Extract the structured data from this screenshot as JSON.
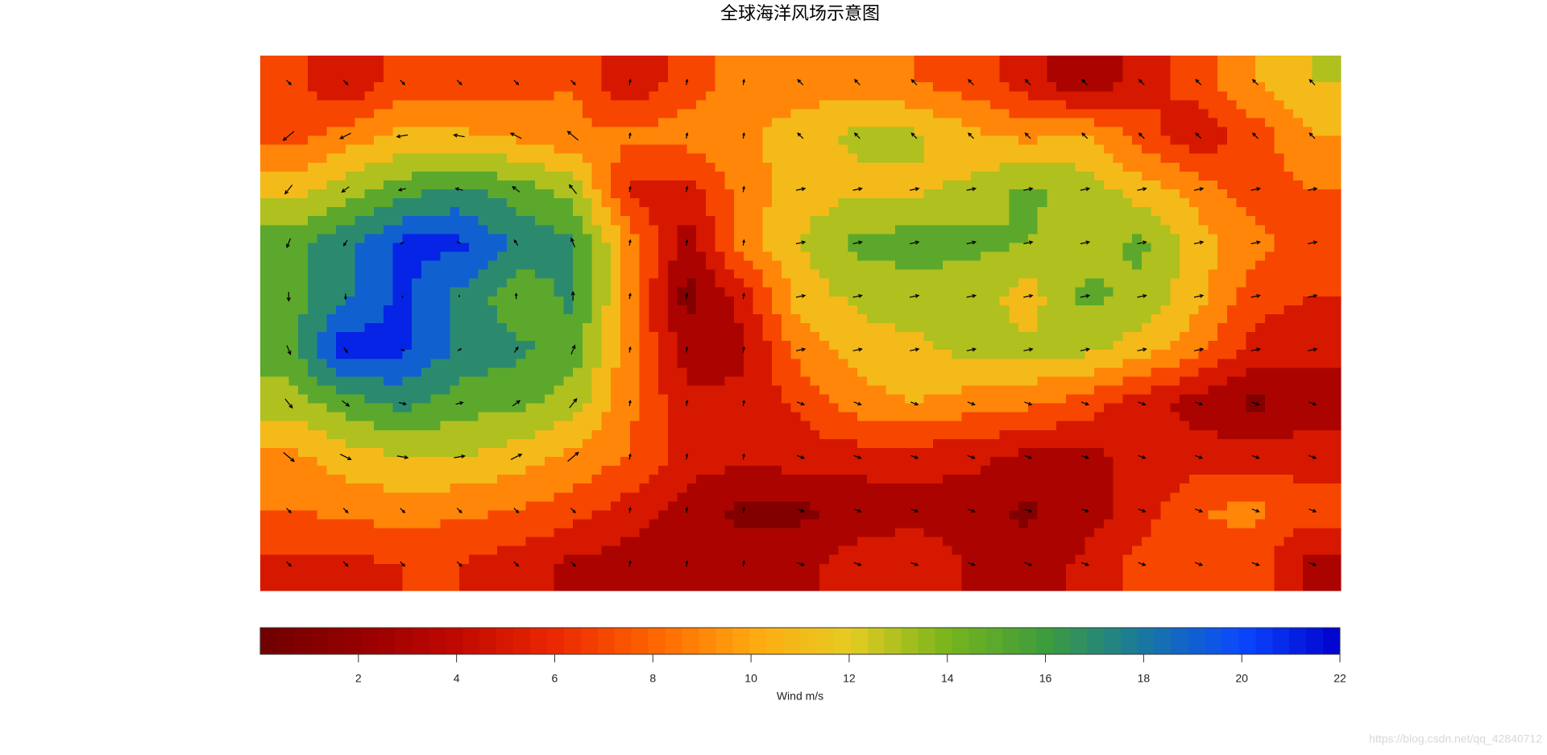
{
  "chart_data": {
    "type": "contour",
    "title": "全球海洋风场示意图",
    "colorbar_label": "Wind m/s",
    "clim": [
      0,
      22
    ],
    "cticks": [
      2,
      4,
      6,
      8,
      10,
      12,
      14,
      16,
      18,
      20,
      22
    ],
    "levels": [
      0,
      2,
      4,
      6,
      8,
      10,
      12,
      14,
      16,
      18,
      20,
      22
    ],
    "colormap": [
      "#700000",
      "#950000",
      "#c00800",
      "#ec2800",
      "#ff6400",
      "#ffa810",
      "#e6cc22",
      "#78b41c",
      "#3d9c3c",
      "#1878a0",
      "#0a48ff",
      "#0000cc"
    ],
    "speed": [
      [
        7,
        4,
        7,
        7,
        7,
        8,
        4,
        7,
        9,
        9,
        9,
        8,
        7,
        5,
        2,
        5,
        7,
        10,
        12
      ],
      [
        7,
        9,
        10.5,
        10.5,
        9.5,
        8.5,
        8.5,
        9,
        9.5,
        11,
        12.5,
        12.5,
        10.5,
        9.5,
        10.5,
        7,
        4.5,
        7,
        10
      ],
      [
        11,
        13,
        15,
        16.5,
        15,
        13,
        5.5,
        5,
        9,
        11,
        11.5,
        11.5,
        12.5,
        14.5,
        13,
        11,
        9,
        7,
        8
      ],
      [
        15,
        17.5,
        20.5,
        20.5,
        17.5,
        16.5,
        9,
        3,
        9,
        12,
        14.5,
        15,
        14.5,
        14,
        13,
        14.5,
        11,
        8.5,
        7
      ],
      [
        15,
        17.5,
        20.5,
        17.5,
        14.5,
        16.5,
        9,
        1,
        5,
        11,
        12.5,
        13,
        13,
        11,
        14.5,
        13.5,
        10.5,
        7,
        6
      ],
      [
        15,
        21.5,
        20.5,
        17.5,
        16.5,
        15,
        8.5,
        3,
        3.5,
        9,
        11,
        11.5,
        12.5,
        12.5,
        12.5,
        11,
        8.5,
        5,
        4.5
      ],
      [
        13,
        15,
        16.5,
        15,
        14.5,
        13,
        8.5,
        4.5,
        4.5,
        6.5,
        9,
        10,
        9,
        8.5,
        7,
        5,
        3,
        1.5,
        3
      ],
      [
        9.5,
        11,
        12,
        12,
        11,
        9.5,
        8,
        5,
        4.5,
        5,
        5,
        5,
        4.5,
        3.5,
        3.5,
        4.5,
        5,
        5,
        5
      ],
      [
        8,
        8.5,
        9,
        8.5,
        8,
        7,
        5,
        3,
        1.5,
        1.5,
        2.5,
        3,
        3,
        1.5,
        3,
        5,
        8,
        8.5,
        7
      ],
      [
        5.5,
        5.5,
        6,
        6,
        5,
        3.5,
        3,
        3,
        3,
        3.5,
        5,
        6,
        3.5,
        3,
        4.5,
        7,
        7.5,
        7,
        3
      ]
    ],
    "u": [
      [
        0.5,
        0.5,
        0.5,
        0.5,
        0.5,
        0.5,
        0.1,
        0.1,
        0.1,
        -0.6,
        -0.6,
        -0.6,
        -0.6,
        -0.6,
        -0.6,
        -0.6,
        -0.6,
        -0.6,
        -0.6
      ],
      [
        -1.2,
        -1.2,
        -1.2,
        -1.2,
        -1.2,
        -1.2,
        0.1,
        0.1,
        0.1,
        -0.6,
        -0.6,
        -0.6,
        -0.6,
        -0.6,
        -0.6,
        -0.6,
        -0.6,
        -0.6,
        -0.6
      ],
      [
        -0.8,
        -0.8,
        -0.8,
        -0.8,
        -0.8,
        -0.8,
        0.1,
        0.1,
        0.1,
        1,
        1,
        1,
        1,
        1,
        1,
        1,
        1,
        1,
        1
      ],
      [
        -0.4,
        -0.4,
        -0.4,
        -0.4,
        -0.4,
        -0.4,
        0.1,
        0.1,
        0.1,
        1,
        1,
        1,
        1,
        1,
        1,
        1,
        1,
        1,
        1
      ],
      [
        0,
        0,
        0,
        0,
        0,
        0,
        0.1,
        0.1,
        0.1,
        1,
        1,
        1,
        1,
        1,
        1,
        1,
        1,
        1,
        1
      ],
      [
        0.4,
        0.4,
        0.4,
        0.4,
        0.4,
        0.4,
        0.1,
        0.1,
        0.1,
        1,
        1,
        1,
        1,
        1,
        1,
        1,
        1,
        1,
        1
      ],
      [
        0.8,
        0.8,
        0.8,
        0.8,
        0.8,
        0.8,
        0.1,
        0.1,
        0.1,
        0.8,
        0.8,
        0.8,
        0.8,
        0.8,
        0.8,
        0.8,
        0.8,
        0.8,
        0.8
      ],
      [
        1.2,
        1.2,
        1.2,
        1.2,
        1.2,
        1.2,
        0.1,
        0.1,
        0.1,
        0.8,
        0.8,
        0.8,
        0.8,
        0.8,
        0.8,
        0.8,
        0.8,
        0.8,
        0.8
      ],
      [
        0.5,
        0.5,
        0.5,
        0.5,
        0.5,
        0.5,
        0.1,
        0.1,
        0.1,
        0.8,
        0.8,
        0.8,
        0.8,
        0.8,
        0.8,
        0.8,
        0.8,
        0.8,
        0.8
      ],
      [
        0.5,
        0.5,
        0.5,
        0.5,
        0.5,
        0.5,
        0.1,
        0.1,
        0.1,
        0.8,
        0.8,
        0.8,
        0.8,
        0.8,
        0.8,
        0.8,
        0.8,
        0.8,
        0.8
      ]
    ],
    "v": [
      [
        -0.5,
        -0.5,
        -0.5,
        -0.5,
        -0.5,
        -0.5,
        0.6,
        0.6,
        0.6,
        0.6,
        0.6,
        0.6,
        0.6,
        0.6,
        0.6,
        0.6,
        0.6,
        0.6,
        0.6
      ],
      [
        -1,
        -0.6,
        -0.2,
        0.2,
        0.6,
        1,
        0.6,
        0.6,
        0.6,
        0.6,
        0.6,
        0.6,
        0.6,
        0.6,
        0.6,
        0.6,
        0.6,
        0.6,
        0.6
      ],
      [
        -1,
        -0.6,
        -0.2,
        0.2,
        0.6,
        1,
        0.6,
        0.6,
        0.6,
        0.2,
        0.2,
        0.2,
        0.2,
        0.2,
        0.2,
        0.2,
        0.2,
        0.2,
        0.2
      ],
      [
        -1,
        -0.6,
        -0.2,
        0.2,
        0.6,
        1,
        0.6,
        0.6,
        0.6,
        0.2,
        0.2,
        0.2,
        0.2,
        0.2,
        0.2,
        0.2,
        0.2,
        0.2,
        0.2
      ],
      [
        -1,
        -0.6,
        -0.2,
        0.2,
        0.6,
        1,
        0.6,
        0.6,
        0.6,
        0.2,
        0.2,
        0.2,
        0.2,
        0.2,
        0.2,
        0.2,
        0.2,
        0.2,
        0.2
      ],
      [
        -1,
        -0.6,
        -0.2,
        0.2,
        0.6,
        1,
        0.6,
        0.6,
        0.6,
        0.2,
        0.2,
        0.2,
        0.2,
        0.2,
        0.2,
        0.2,
        0.2,
        0.2,
        0.2
      ],
      [
        -1,
        -0.6,
        -0.2,
        0.2,
        0.6,
        1,
        0.6,
        0.6,
        0.6,
        -0.3,
        -0.3,
        -0.3,
        -0.3,
        -0.3,
        -0.3,
        -0.3,
        -0.3,
        -0.3,
        -0.3
      ],
      [
        -1,
        -0.6,
        -0.2,
        0.2,
        0.6,
        1,
        0.6,
        0.6,
        0.6,
        -0.3,
        -0.3,
        -0.3,
        -0.3,
        -0.3,
        -0.3,
        -0.3,
        -0.3,
        -0.3,
        -0.3
      ],
      [
        -0.5,
        -0.5,
        -0.5,
        -0.5,
        -0.5,
        -0.5,
        0.6,
        0.6,
        0.6,
        -0.3,
        -0.3,
        -0.3,
        -0.3,
        -0.3,
        -0.3,
        -0.3,
        -0.3,
        -0.3,
        -0.3
      ],
      [
        -0.5,
        -0.5,
        -0.5,
        -0.5,
        -0.5,
        -0.5,
        0.6,
        0.6,
        0.6,
        -0.3,
        -0.3,
        -0.3,
        -0.3,
        -0.3,
        -0.3,
        -0.3,
        -0.3,
        -0.3,
        -0.3
      ]
    ],
    "watermark": "https://blog.csdn.net/qq_42840712"
  }
}
